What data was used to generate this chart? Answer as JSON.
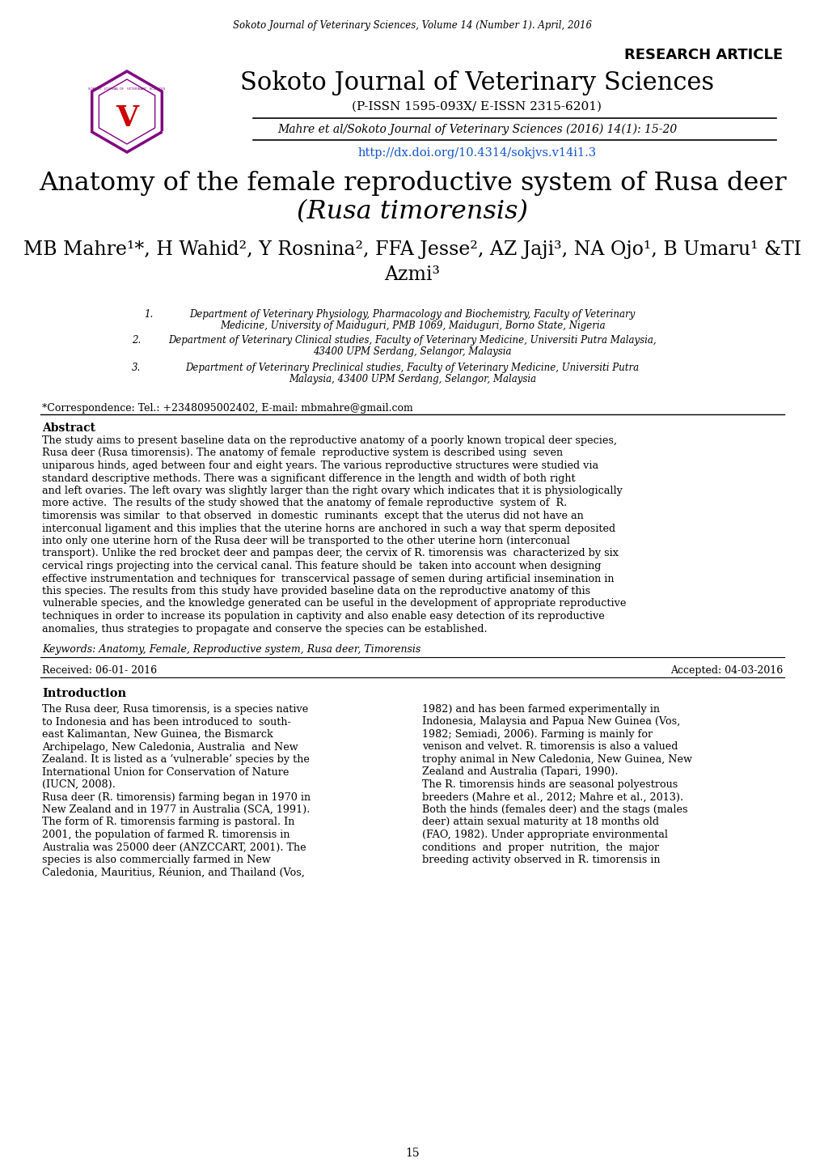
{
  "bg_color": "#ffffff",
  "header_journal": "Sokoto Journal of Veterinary Sciences, Volume 14 (Number 1). April, 2016",
  "research_article": "RESEARCH ARTICLE",
  "journal_title": "Sokoto Journal of Veterinary Sciences",
  "issn": "(P-ISSN 1595-093X/ E-ISSN 2315-6201)",
  "citation": "Mahre et al/Sokoto Journal of Veterinary Sciences (2016) 14(1): 15-20",
  "doi": "http://dx.doi.org/10.4314/sokjvs.v14i1.3",
  "paper_title_line1": "Anatomy of the female reproductive system of Rusa deer",
  "paper_title_line2": "(Rusa timorensis)",
  "authors_line1": "MB Mahre¹*, H Wahid², Y Rosnina², FFA Jesse², AZ Jaji³, NA Ojo¹, B Umaru¹ &TI",
  "authors_line2": "Azmi³",
  "affil1_num": "1.",
  "affil1a": "Department of Veterinary Physiology, Pharmacology and Biochemistry, Faculty of Veterinary",
  "affil1b": "Medicine, University of Maiduguri, PMB 1069, Maiduguri, Borno State, Nigeria",
  "affil2_num": "2.",
  "affil2a": "Department of Veterinary Clinical studies, Faculty of Veterinary Medicine, Universiti Putra Malaysia,",
  "affil2b": "43400 UPM Serdang, Selangor, Malaysia",
  "affil3_num": "3.",
  "affil3a": "Department of Veterinary Preclinical studies, Faculty of Veterinary Medicine, Universiti Putra",
  "affil3b": "Malaysia, 43400 UPM Serdang, Selangor, Malaysia",
  "correspondence": "*Correspondence: Tel.: +2348095002402, E-mail: mbmahre@gmail.com",
  "abstract_title": "Abstract",
  "abstract_lines": [
    "The study aims to present baseline data on the reproductive anatomy of a poorly known tropical deer species,",
    "Rusa deer (Rusa timorensis). The anatomy of female  reproductive system is described using  seven",
    "uniparous hinds, aged between four and eight years. The various reproductive structures were studied via",
    "standard descriptive methods. There was a significant difference in the length and width of both right",
    "and left ovaries. The left ovary was slightly larger than the right ovary which indicates that it is physiologically",
    "more active.  The results of the study showed that the anatomy of female reproductive  system of  R.",
    "timorensis was similar  to that observed  in domestic  ruminants  except that the uterus did not have an",
    "interconual ligament and this implies that the uterine horns are anchored in such a way that sperm deposited",
    "into only one uterine horn of the Rusa deer will be transported to the other uterine horn (interconual",
    "transport). Unlike the red brocket deer and pampas deer, the cervix of R. timorensis was  characterized by six",
    "cervical rings projecting into the cervical canal. This feature should be  taken into account when designing",
    "effective instrumentation and techniques for  transcervical passage of semen during artificial insemination in",
    "this species. The results from this study have provided baseline data on the reproductive anatomy of this",
    "vulnerable species, and the knowledge generated can be useful in the development of appropriate reproductive",
    "techniques in order to increase its population in captivity and also enable easy detection of its reproductive",
    "anomalies, thus strategies to propagate and conserve the species can be established."
  ],
  "keywords": "Keywords: Anatomy, Female, Reproductive system, Rusa deer, Timorensis",
  "received": "Received: 06-01- 2016",
  "accepted": "Accepted: 04-03-2016",
  "intro_title": "Introduction",
  "intro_col1_lines": [
    "The Rusa deer, Rusa timorensis, is a species native",
    "to Indonesia and has been introduced to  south-",
    "east Kalimantan, New Guinea, the Bismarck",
    "Archipelago, New Caledonia, Australia  and New",
    "Zealand. It is listed as a ‘vulnerable’ species by the",
    "International Union for Conservation of Nature",
    "(IUCN, 2008).",
    "Rusa deer (R. timorensis) farming began in 1970 in",
    "New Zealand and in 1977 in Australia (SCA, 1991).",
    "The form of R. timorensis farming is pastoral. In",
    "2001, the population of farmed R. timorensis in",
    "Australia was 25000 deer (ANZCCART, 2001). The",
    "species is also commercially farmed in New",
    "Caledonia, Mauritius, Réunion, and Thailand (Vos,"
  ],
  "intro_col2_lines": [
    "1982) and has been farmed experimentally in",
    "Indonesia, Malaysia and Papua New Guinea (Vos,",
    "1982; Semiadi, 2006). Farming is mainly for",
    "venison and velvet. R. timorensis is also a valued",
    "trophy animal in New Caledonia, New Guinea, New",
    "Zealand and Australia (Tapari, 1990).",
    "The R. timorensis hinds are seasonal polyestrous",
    "breeders (Mahre et al., 2012; Mahre et al., 2013).",
    "Both the hinds (females deer) and the stags (males",
    "deer) attain sexual maturity at 18 months old",
    "(FAO, 1982). Under appropriate environmental",
    "conditions  and  proper  nutrition,  the  major",
    "breeding activity observed in R. timorensis in"
  ],
  "page_number": "15",
  "line_color": "#000000",
  "text_color": "#000000",
  "doi_color": "#1155cc",
  "logo_border_color": "#800080",
  "logo_v_color": "#cc0000",
  "logo_text_color": "#800080"
}
